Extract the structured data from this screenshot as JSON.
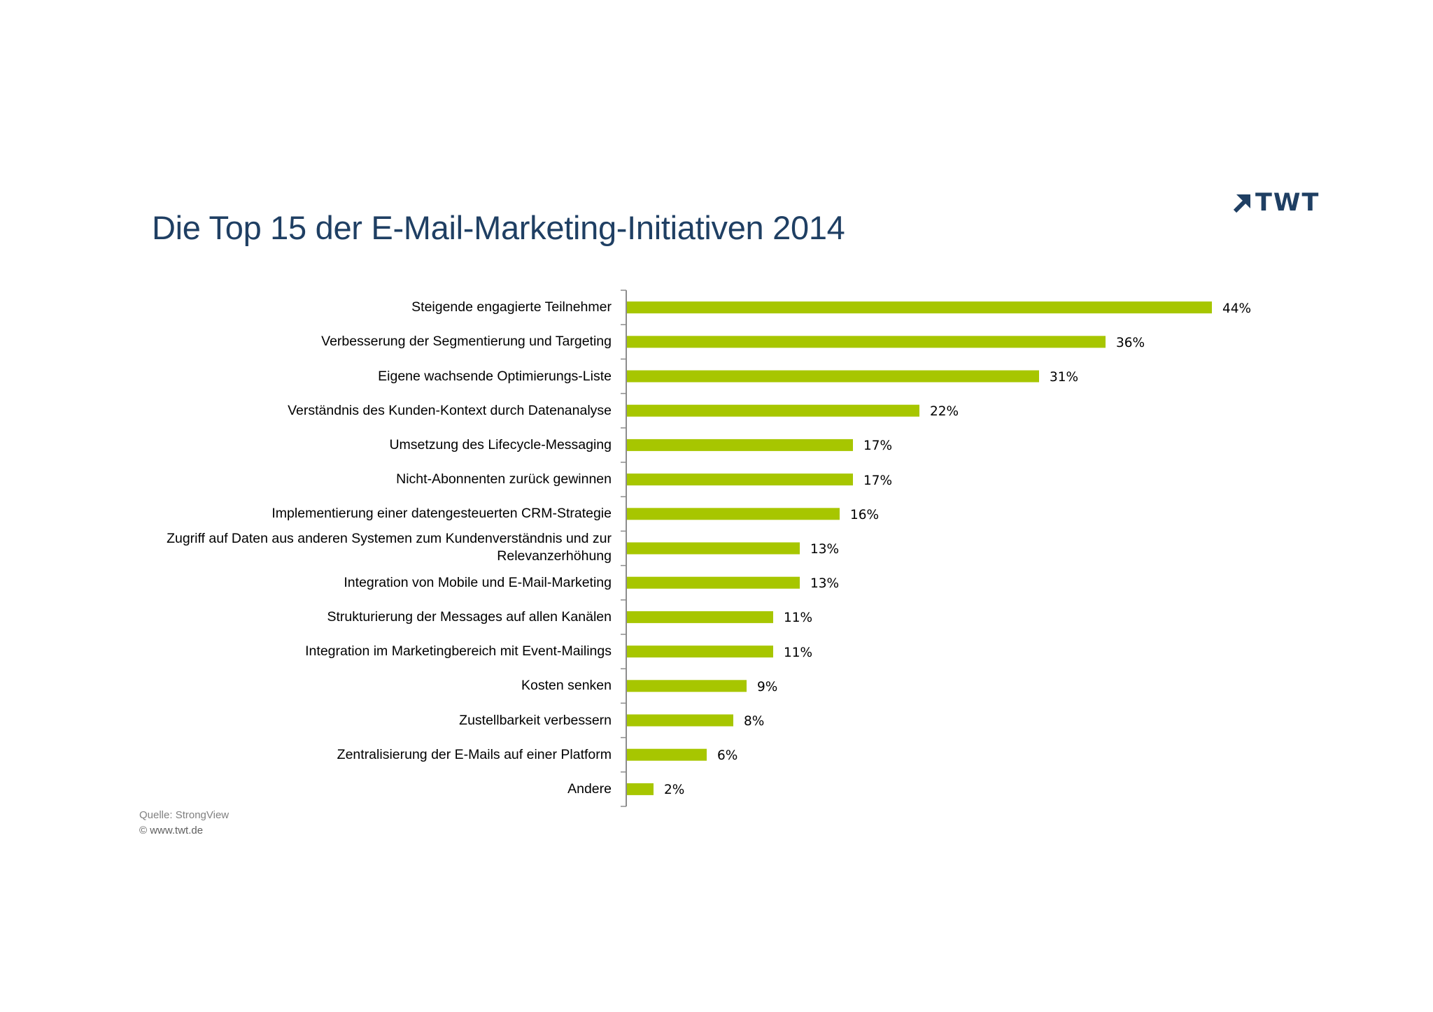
{
  "title": "Die Top 15 der E-Mail-Marketing-Initiativen 2014",
  "logo": {
    "text": "TWT",
    "icon": "arrow-up-right-icon"
  },
  "source": "Quelle: StrongView",
  "copyright": "©  www.twt.de",
  "colors": {
    "bar": "#a7c600",
    "title": "#1f3f63",
    "axis": "#8c8c8c"
  },
  "chart_data": {
    "type": "bar",
    "orientation": "horizontal",
    "title": "Die Top 15 der E-Mail-Marketing-Initiativen 2014",
    "categories": [
      "Steigende engagierte Teilnehmer",
      "Verbesserung der Segmentierung und Targeting",
      "Eigene wachsende Optimierungs-Liste",
      "Verständnis des Kunden-Kontext durch Datenanalyse",
      "Umsetzung des Lifecycle-Messaging",
      "Nicht-Abonnenten zurück gewinnen",
      "Implementierung einer datengesteuerten CRM-Strategie",
      "Zugriff auf Daten aus anderen Systemen zum Kundenverständnis und zur Relevanzerhöhung",
      "Integration von Mobile und E-Mail-Marketing",
      "Strukturierung der Messages auf allen Kanälen",
      "Integration im Marketingbereich mit Event-Mailings",
      "Kosten senken",
      "Zustellbarkeit verbessern",
      "Zentralisierung der E-Mails auf einer Platform",
      "Andere"
    ],
    "values": [
      44,
      36,
      31,
      22,
      17,
      17,
      16,
      13,
      13,
      11,
      11,
      9,
      8,
      6,
      2
    ],
    "value_labels": [
      "44%",
      "36%",
      "31%",
      "22%",
      "17%",
      "17%",
      "16%",
      "13%",
      "13%",
      "11%",
      "11%",
      "9%",
      "8%",
      "6%",
      "2%"
    ],
    "unit": "%",
    "xlim": [
      0,
      44
    ],
    "grid": false,
    "legend": "none"
  }
}
